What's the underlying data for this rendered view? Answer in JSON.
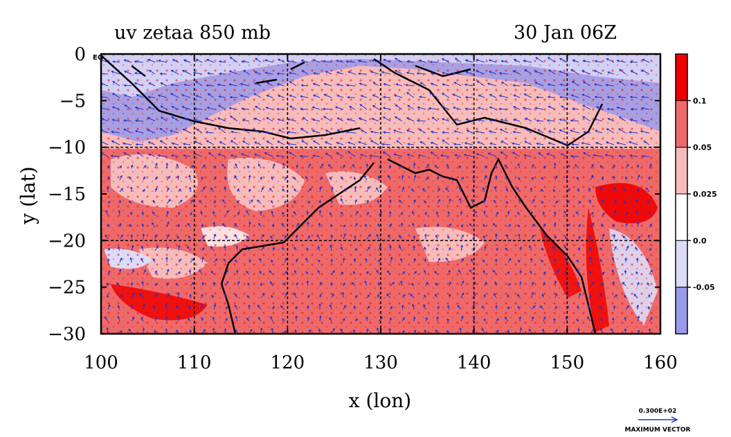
{
  "chart_data": {
    "type": "heatmap",
    "title_left": "uv zetaa 850 mb",
    "title_right": "30 Jan 06Z",
    "xlabel": "x (lon)",
    "ylabel": "y (lat)",
    "xlim": [
      100,
      160
    ],
    "ylim": [
      -30,
      0
    ],
    "x_ticks": [
      "100",
      "110",
      "120",
      "130",
      "140",
      "150",
      "160"
    ],
    "y_ticks": [
      "0",
      "−5",
      "−10",
      "−15",
      "−20",
      "−25",
      "−30"
    ],
    "corner_label": "EQ",
    "grid": true,
    "colorbar": {
      "labels": [
        "0.1",
        "0.05",
        "0.025",
        "0.0",
        "-0.05"
      ],
      "colors": [
        "#ee0000",
        "#ee6a6a",
        "#f6bcbc",
        "#ffffff",
        "#dcdcf8",
        "#9a9aea"
      ]
    },
    "vector_legend": {
      "value": "0.300E+02",
      "label": "MAXIMUM VECTOR",
      "color": "#2233cc"
    }
  }
}
